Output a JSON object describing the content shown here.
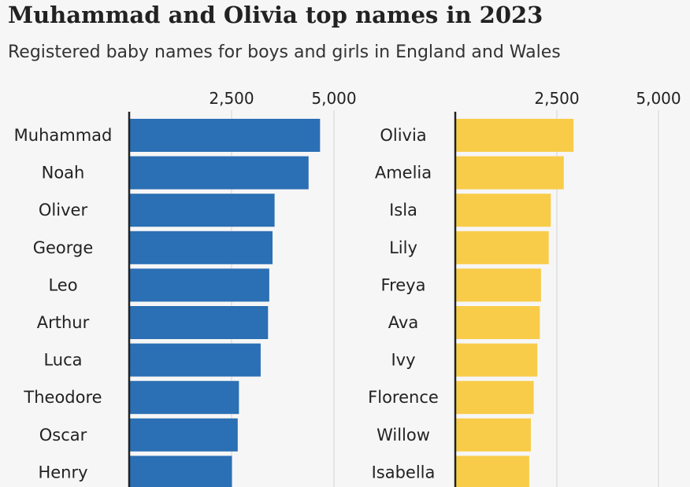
{
  "title": "Muhammad and Olivia top names in 2023",
  "subtitle": "Registered baby names for boys and girls in England and Wales",
  "chart_data": [
    {
      "type": "bar",
      "orientation": "horizontal",
      "color": "#2b6fb4",
      "categories": [
        "Muhammad",
        "Noah",
        "Oliver",
        "George",
        "Leo",
        "Arthur",
        "Luca",
        "Theodore",
        "Oscar",
        "Henry"
      ],
      "values": [
        4660,
        4380,
        3550,
        3500,
        3420,
        3390,
        3210,
        2680,
        2650,
        2510
      ],
      "xlim": [
        0,
        5000
      ],
      "ticks": [
        "2,500",
        "5,000"
      ],
      "tick_values": [
        2500,
        5000
      ],
      "grid": true
    },
    {
      "type": "bar",
      "orientation": "horizontal",
      "color": "#f8cc49",
      "categories": [
        "Olivia",
        "Amelia",
        "Isla",
        "Lily",
        "Freya",
        "Ava",
        "Ivy",
        "Florence",
        "Willow",
        "Isabella"
      ],
      "values": [
        2910,
        2670,
        2350,
        2300,
        2110,
        2080,
        2020,
        1930,
        1860,
        1820
      ],
      "xlim": [
        0,
        5000
      ],
      "ticks": [
        "2,500",
        "5,000"
      ],
      "tick_values": [
        2500,
        5000
      ],
      "grid": true
    }
  ]
}
